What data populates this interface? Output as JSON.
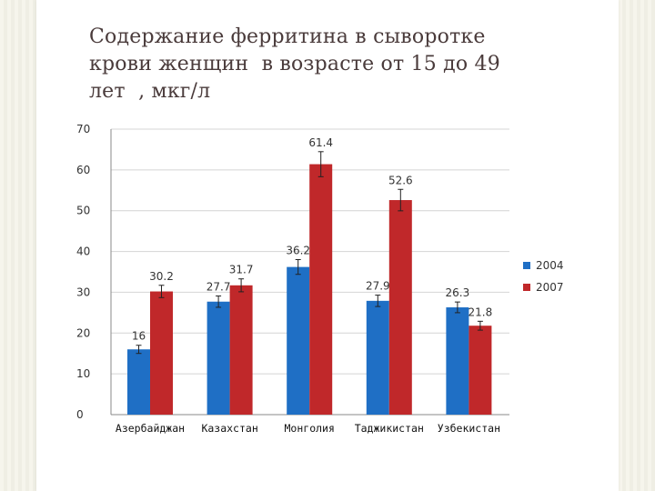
{
  "title_lines": [
    "Содержание ферритина в сыворотке",
    "крови женщин  в возрасте от 15 до 49",
    "лет  , мкг/л"
  ],
  "chart_data": {
    "type": "bar",
    "title": "Содержание ферритина в сыворотке крови женщин  в возрасте от 15 до 49 лет  , мкг/л",
    "categories": [
      "Азербайджан",
      "Казахстан",
      "Монголия",
      "Таджикистан",
      "Узбекистан"
    ],
    "series": [
      {
        "name": "2004",
        "values": [
          16,
          27.7,
          36.2,
          27.9,
          26.3
        ],
        "color": "#1f6fc5"
      },
      {
        "name": "2007",
        "values": [
          30.2,
          31.7,
          61.4,
          52.6,
          21.8
        ],
        "color": "#c0282a"
      }
    ],
    "error_bars": true,
    "ylim": [
      0,
      70
    ],
    "yticks": [
      0,
      10,
      20,
      30,
      40,
      50,
      60,
      70
    ],
    "grid": true,
    "legend": "right"
  }
}
